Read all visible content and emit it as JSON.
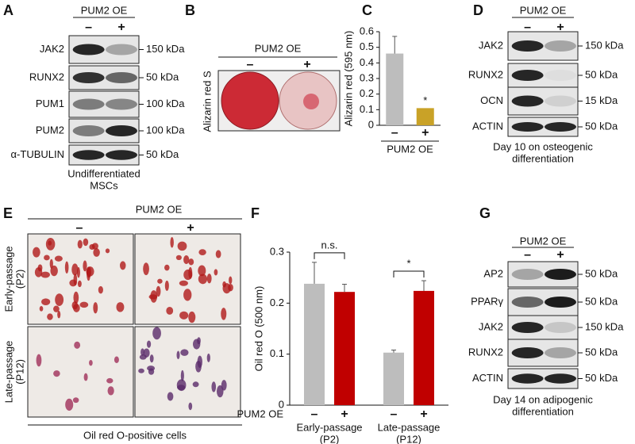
{
  "figure": {
    "panels": {
      "A": {
        "label": "A",
        "group": "PUM2 OE",
        "minus": "–",
        "plus": "+",
        "rows": [
          {
            "name": "JAK2",
            "size": "150 kDa"
          },
          {
            "name": "RUNX2",
            "size": "50 kDa"
          },
          {
            "name": "PUM1",
            "size": "100 kDa"
          },
          {
            "name": "PUM2",
            "size": "100 kDa"
          },
          {
            "name": "α-TUBULIN",
            "size": "50 kDa"
          }
        ],
        "caption": [
          "Undifferentiated",
          "MSCs"
        ]
      },
      "B": {
        "label": "B",
        "group": "PUM2 OE",
        "minus": "–",
        "plus": "+",
        "ylabel": "Alizarin red S"
      },
      "D": {
        "label": "D",
        "group": "PUM2 OE",
        "minus": "–",
        "plus": "+",
        "rows": [
          {
            "name": "JAK2",
            "size": "150 kDa"
          },
          {
            "name": "RUNX2",
            "size": "50 kDa"
          },
          {
            "name": "OCN",
            "size": "15 kDa"
          },
          {
            "name": "ACTIN",
            "size": "50 kDa"
          }
        ],
        "caption": [
          "Day 10 on osteogenic",
          "differentiation"
        ]
      },
      "E": {
        "label": "E",
        "group": "PUM2 OE",
        "minus": "–",
        "plus": "+",
        "rows": [
          [
            "Early-passage",
            "(P2)"
          ],
          [
            "Late-passage",
            "(P12)"
          ]
        ],
        "caption": "Oil red O-positive cells"
      },
      "G": {
        "label": "G",
        "group": "PUM2 OE",
        "minus": "–",
        "plus": "+",
        "rows": [
          {
            "name": "AP2",
            "size": "50 kDa"
          },
          {
            "name": "PPARγ",
            "size": "50 kDa"
          },
          {
            "name": "JAK2",
            "size": "150 kDa"
          },
          {
            "name": "RUNX2",
            "size": "50 kDa"
          },
          {
            "name": "ACTIN",
            "size": "50 kDa"
          }
        ],
        "caption": [
          "Day 14 on adipogenic",
          "differentiation"
        ]
      }
    }
  },
  "chart_data": [
    {
      "type": "bar",
      "panel": "C",
      "ylabel": "Alizarin red (595 nm)",
      "xlabel": "PUM2 OE",
      "categories": [
        "–",
        "+"
      ],
      "values": [
        0.46,
        0.11
      ],
      "errors": [
        0.11,
        null
      ],
      "colors": [
        "#bdbdbd",
        "#c9a227"
      ],
      "annotations": [
        null,
        "*"
      ],
      "ylim": [
        0,
        0.6
      ],
      "yticks": [
        0,
        0.1,
        0.2,
        0.3,
        0.4,
        0.5,
        0.6
      ]
    },
    {
      "type": "bar",
      "panel": "F",
      "ylabel": "Oil red O (500 nm)",
      "xlabel": "PUM2 OE",
      "groups": [
        [
          "Early-passage",
          "(P2)"
        ],
        [
          "Late-passage",
          "(P12)"
        ]
      ],
      "series": [
        {
          "name": "–",
          "color": "#bdbdbd",
          "values": [
            0.238,
            0.103
          ],
          "errors": [
            0.042,
            0.005
          ]
        },
        {
          "name": "+",
          "color": "#c00000",
          "values": [
            0.222,
            0.224
          ],
          "errors": [
            0.015,
            0.02
          ]
        }
      ],
      "annotations": [
        "n.s.",
        "*"
      ],
      "ylim": [
        0,
        0.3
      ],
      "yticks": [
        0,
        0.1,
        0.2,
        0.3
      ]
    }
  ]
}
